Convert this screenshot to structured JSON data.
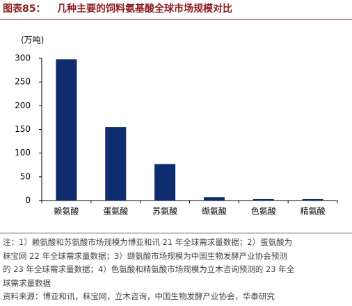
{
  "chart_data": {
    "type": "bar",
    "figure_label": "图表85：",
    "title": "几种主要的饲料氨基酸全球市场规模对比",
    "unit_label": "(万吨)",
    "categories": [
      "赖氨酸",
      "蛋氨酸",
      "苏氨酸",
      "缬氨酸",
      "色氨酸",
      "精氨酸"
    ],
    "values": [
      298,
      155,
      77,
      7,
      3,
      3
    ],
    "color": "#0f2d6e",
    "ylim": [
      0,
      300
    ],
    "yticks": [
      0,
      50,
      100,
      150,
      200,
      250,
      300
    ],
    "grid": false,
    "notes": [
      "注：1）赖氨酸和苏氨酸市场规模为博亚和讯 21 年全球需求量数据；2）蛋氨酸为",
      "秣宝网 22 年全球需求量数据；3）缬氨酸市场规模为中国生物发酵产业协会预测",
      "的 23 年全球需求量数据；4）色氨酸和精氨酸市场规模为立木咨询预测的 23 年全",
      "球需求量数据"
    ],
    "source": "资料来源：博亚和讯，秣宝网，立木咨询，中国生物发酵产业协会，华泰研究"
  }
}
